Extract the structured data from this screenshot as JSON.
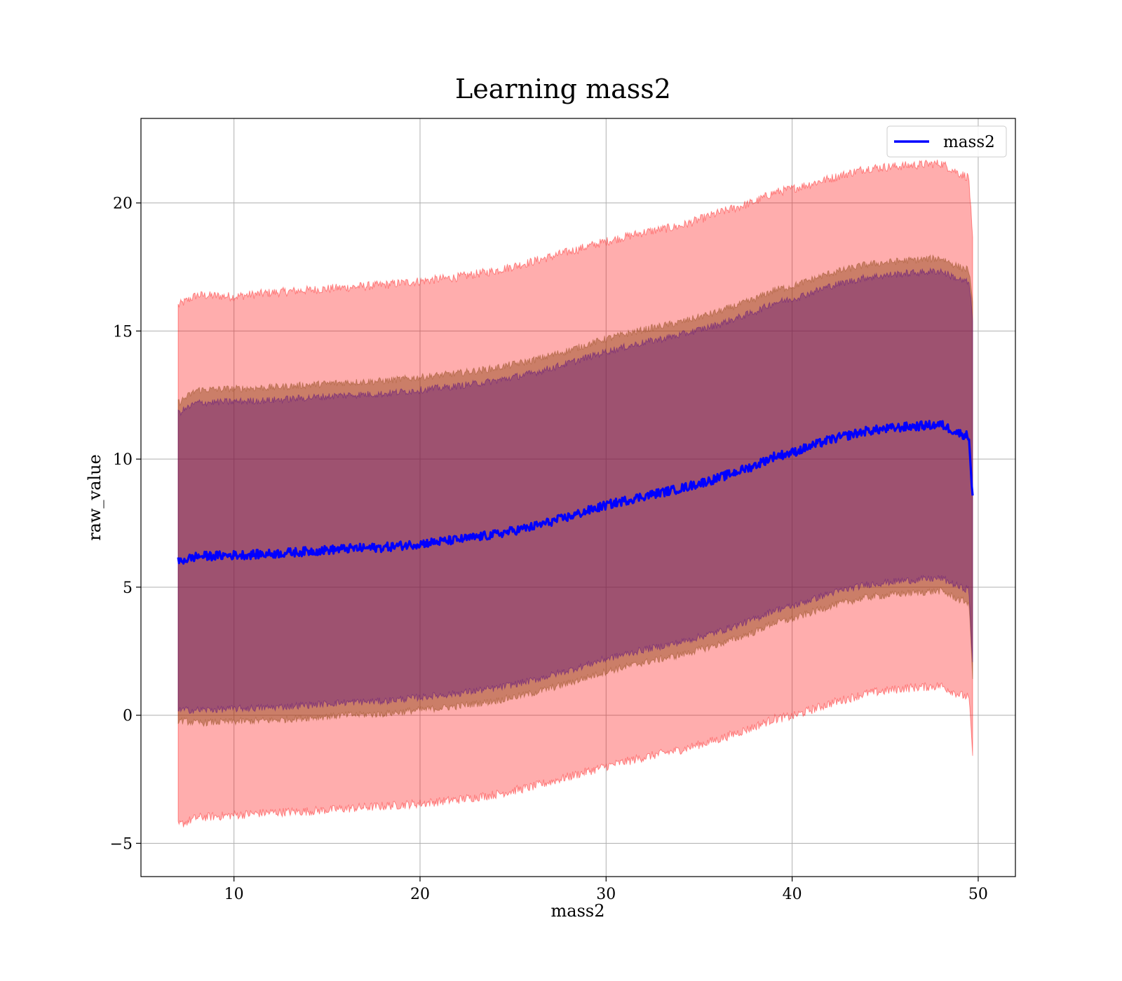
{
  "chart_data": {
    "type": "area",
    "title": "Learning mass2",
    "xlabel": "mass2",
    "ylabel": "raw_value",
    "xlim": [
      5,
      52
    ],
    "ylim": [
      -6.3,
      23.3
    ],
    "xticks": [
      10,
      20,
      30,
      40,
      50
    ],
    "yticks": [
      -5,
      0,
      5,
      10,
      15,
      20
    ],
    "xtick_labels": [
      "10",
      "20",
      "30",
      "40",
      "50"
    ],
    "ytick_labels": [
      "−5",
      "0",
      "5",
      "10",
      "15",
      "20"
    ],
    "grid": true,
    "legend": {
      "placement": "top-right",
      "entries": [
        "mass2"
      ]
    },
    "colors": {
      "mean_line": "#0000ff",
      "outer_band": "#ff0000",
      "mid_band": "#8b4513",
      "inner_band": "#4b0082"
    },
    "x_range": [
      7.0,
      49.7
    ],
    "series": [
      {
        "name": "mass2",
        "kind": "line",
        "x": [
          7.0,
          8,
          10,
          12,
          14,
          16,
          18,
          20,
          22,
          24,
          26,
          28,
          30,
          32,
          34,
          36,
          38,
          39,
          40,
          42,
          44,
          46,
          47,
          48,
          49,
          49.5,
          49.7
        ],
        "y": [
          6.0,
          6.2,
          6.25,
          6.3,
          6.4,
          6.5,
          6.55,
          6.7,
          6.85,
          7.05,
          7.35,
          7.75,
          8.2,
          8.55,
          8.85,
          9.25,
          9.75,
          10.1,
          10.25,
          10.75,
          11.1,
          11.25,
          11.3,
          11.35,
          11.0,
          10.9,
          8.5
        ]
      },
      {
        "kind": "band",
        "x": [
          7.0,
          8,
          10,
          12,
          14,
          16,
          18,
          20,
          22,
          24,
          26,
          28,
          30,
          32,
          34,
          36,
          38,
          39,
          40,
          42,
          44,
          46,
          47,
          48,
          49,
          49.5,
          49.7
        ],
        "upper": [
          16.0,
          16.4,
          16.35,
          16.5,
          16.6,
          16.7,
          16.8,
          16.95,
          17.1,
          17.35,
          17.7,
          18.1,
          18.5,
          18.85,
          19.1,
          19.6,
          20.05,
          20.4,
          20.55,
          20.95,
          21.35,
          21.45,
          21.5,
          21.55,
          21.15,
          21.0,
          18.5
        ],
        "lower": [
          -4.3,
          -4.0,
          -3.9,
          -3.8,
          -3.75,
          -3.65,
          -3.55,
          -3.45,
          -3.3,
          -3.1,
          -2.8,
          -2.4,
          -2.0,
          -1.65,
          -1.35,
          -0.95,
          -0.45,
          -0.15,
          -0.05,
          0.45,
          0.85,
          1.05,
          1.1,
          1.15,
          0.8,
          0.7,
          -1.5
        ]
      },
      {
        "kind": "band",
        "x": [
          7.0,
          8,
          10,
          12,
          14,
          16,
          18,
          20,
          22,
          24,
          26,
          28,
          30,
          32,
          34,
          36,
          38,
          39,
          40,
          42,
          44,
          46,
          47,
          48,
          49,
          49.5,
          49.7
        ],
        "upper": [
          12.2,
          12.7,
          12.75,
          12.8,
          12.9,
          13.0,
          13.05,
          13.2,
          13.35,
          13.55,
          13.85,
          14.25,
          14.7,
          15.05,
          15.35,
          15.75,
          16.25,
          16.6,
          16.75,
          17.25,
          17.6,
          17.75,
          17.8,
          17.85,
          17.5,
          17.4,
          16.0
        ],
        "lower": [
          -0.2,
          -0.3,
          -0.25,
          -0.2,
          -0.1,
          0.0,
          0.05,
          0.2,
          0.35,
          0.55,
          0.85,
          1.25,
          1.7,
          2.05,
          2.35,
          2.75,
          3.25,
          3.6,
          3.75,
          4.25,
          4.6,
          4.75,
          4.8,
          4.85,
          4.5,
          4.4,
          1.5
        ]
      },
      {
        "kind": "band",
        "x": [
          7.0,
          8,
          10,
          12,
          14,
          16,
          18,
          20,
          22,
          24,
          26,
          28,
          30,
          32,
          34,
          36,
          38,
          39,
          40,
          42,
          44,
          46,
          47,
          48,
          49,
          49.5,
          49.7
        ],
        "upper": [
          11.8,
          12.2,
          12.25,
          12.3,
          12.4,
          12.5,
          12.55,
          12.7,
          12.85,
          13.05,
          13.35,
          13.75,
          14.2,
          14.55,
          14.85,
          15.25,
          15.75,
          16.1,
          16.25,
          16.75,
          17.1,
          17.25,
          17.3,
          17.35,
          17.0,
          16.9,
          15.5
        ],
        "lower": [
          0.2,
          0.2,
          0.25,
          0.3,
          0.4,
          0.5,
          0.55,
          0.7,
          0.85,
          1.05,
          1.35,
          1.75,
          2.2,
          2.55,
          2.85,
          3.25,
          3.75,
          4.1,
          4.25,
          4.75,
          5.1,
          5.25,
          5.3,
          5.35,
          5.0,
          4.9,
          2.0
        ]
      }
    ]
  }
}
